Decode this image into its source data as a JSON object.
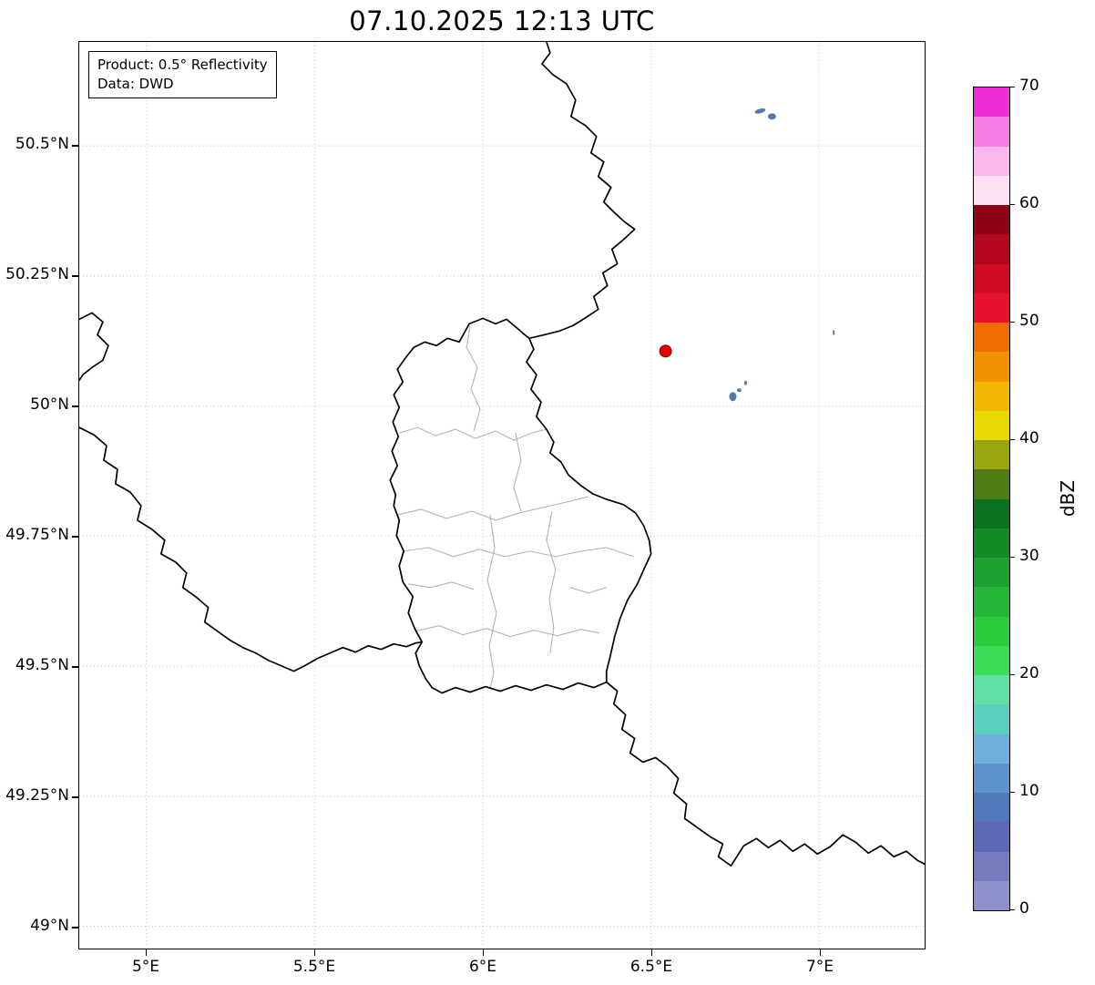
{
  "title": "07.10.2025 12:13 UTC",
  "info_box": {
    "line1": "Product: 0.5° Reflectivity",
    "line2": "Data: DWD"
  },
  "axes": {
    "x_ticks": [
      "5°E",
      "5.5°E",
      "6°E",
      "6.5°E",
      "7°E"
    ],
    "y_ticks": [
      "50.5°N",
      "50.25°N",
      "50°N",
      "49.75°N",
      "49.5°N",
      "49.25°N",
      "49°N"
    ]
  },
  "colorbar": {
    "label": "dBZ",
    "ticks": [
      "70",
      "60",
      "50",
      "40",
      "30",
      "20",
      "10",
      "0"
    ],
    "min": 0,
    "max": 70,
    "bands": [
      {
        "from": 0,
        "to": 2.5,
        "color": "#8e90c9"
      },
      {
        "from": 2.5,
        "to": 5,
        "color": "#767bbf"
      },
      {
        "from": 5,
        "to": 7.5,
        "color": "#5e68b4"
      },
      {
        "from": 7.5,
        "to": 10,
        "color": "#4f79bb"
      },
      {
        "from": 10,
        "to": 12.5,
        "color": "#5d93cc"
      },
      {
        "from": 12.5,
        "to": 15,
        "color": "#6fb1dd"
      },
      {
        "from": 15,
        "to": 17.5,
        "color": "#59cfc0"
      },
      {
        "from": 17.5,
        "to": 20,
        "color": "#5fe0a5"
      },
      {
        "from": 20,
        "to": 22.5,
        "color": "#3ddc56"
      },
      {
        "from": 22.5,
        "to": 25,
        "color": "#2ecb3f"
      },
      {
        "from": 25,
        "to": 27.5,
        "color": "#25b637"
      },
      {
        "from": 27.5,
        "to": 30,
        "color": "#1ca02f"
      },
      {
        "from": 30,
        "to": 32.5,
        "color": "#138a27"
      },
      {
        "from": 32.5,
        "to": 35,
        "color": "#0b731f"
      },
      {
        "from": 35,
        "to": 37.5,
        "color": "#4d7d14"
      },
      {
        "from": 37.5,
        "to": 40,
        "color": "#9aa60d"
      },
      {
        "from": 40,
        "to": 42.5,
        "color": "#e8d905"
      },
      {
        "from": 42.5,
        "to": 45,
        "color": "#f2b603"
      },
      {
        "from": 45,
        "to": 47.5,
        "color": "#f29202"
      },
      {
        "from": 47.5,
        "to": 50,
        "color": "#f06c01"
      },
      {
        "from": 50,
        "to": 52.5,
        "color": "#e8112d"
      },
      {
        "from": 52.5,
        "to": 55,
        "color": "#cf0c24"
      },
      {
        "from": 55,
        "to": 57.5,
        "color": "#b3071d"
      },
      {
        "from": 57.5,
        "to": 60,
        "color": "#8f0316"
      },
      {
        "from": 60,
        "to": 62.5,
        "color": "#fce1f4"
      },
      {
        "from": 62.5,
        "to": 65,
        "color": "#f9b8ec"
      },
      {
        "from": 65,
        "to": 67.5,
        "color": "#f77ee4"
      },
      {
        "from": 67.5,
        "to": 70,
        "color": "#ee2fd4"
      }
    ]
  },
  "map": {
    "marker_color": "#e50000",
    "echo_color": "#4f7dab",
    "grid_color": "#c3c3c3",
    "border_color": "#000000",
    "canton_border_color": "#b3b3b3"
  },
  "chart_data": {
    "type": "map",
    "title": "07.10.2025 12:13 UTC",
    "product": "0.5° Reflectivity",
    "data_source": "DWD",
    "extent": {
      "lon_min": 4.8,
      "lon_max": 7.31,
      "lat_min": 48.96,
      "lat_max": 50.7
    },
    "x_ticks_deg_e": [
      5,
      5.5,
      6,
      6.5,
      7
    ],
    "y_ticks_deg_n": [
      49,
      49.25,
      49.5,
      49.75,
      50,
      50.25,
      50.5
    ],
    "colorbar": {
      "label": "dBZ",
      "min": 0,
      "max": 70,
      "tick_step": 10,
      "band_step": 2.5
    },
    "radar_site_marker": {
      "lon_e": 6.55,
      "lat_n": 50.11,
      "color": "red"
    },
    "echo_cells": [
      {
        "lon_e": 6.83,
        "lat_n": 50.56,
        "approx_dbz": 8
      },
      {
        "lon_e": 6.75,
        "lat_n": 50.02,
        "approx_dbz": 8
      },
      {
        "lon_e": 7.05,
        "lat_n": 50.14,
        "approx_dbz": 5
      }
    ],
    "regions_shown": [
      "Luxembourg with canton boundaries",
      "Belgium",
      "Germany",
      "France"
    ]
  }
}
